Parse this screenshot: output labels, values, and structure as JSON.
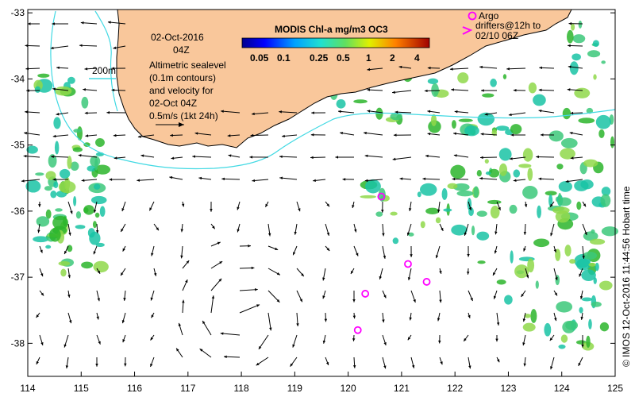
{
  "map": {
    "date_label": "02-Oct-2016",
    "time_label": "04Z",
    "isobath_label": "200m",
    "altimetry_lines": [
      "Altimetric sealevel",
      "(0.1m contours)",
      "and velocity for",
      "02-Oct 04Z",
      "0.5m/s (1kt 24h)"
    ],
    "argo_legend": [
      "Argo",
      "drifters@12h to",
      "02/10 06Z"
    ],
    "credit": "© IMOS 12-Oct-2016 11:44:56 Hobart time",
    "x_ticks": [
      "114",
      "115",
      "116",
      "117",
      "118",
      "119",
      "120",
      "121",
      "122",
      "123",
      "124",
      "125"
    ],
    "y_ticks": [
      "-33",
      "-34",
      "-35",
      "-36",
      "-37",
      "-38"
    ]
  },
  "colorbar": {
    "title": "MODIS Chl-a mg/m3 OC3",
    "tick_labels": [
      "0.05",
      "0.1",
      "0.25",
      "0.5",
      "1",
      "2",
      "4"
    ]
  },
  "colors": {
    "land": "#f9c79b",
    "coast_line": "#000000",
    "isobath": "#41d9e3",
    "argo_marker": "#ff00ff",
    "chl_low": "#19c3a5",
    "chl_mid": "#2bb52b",
    "chl_high": "#8fd84a"
  },
  "argo_positions": [
    {
      "lon": 120.62,
      "lat": -35.78
    },
    {
      "lon": 121.12,
      "lat": -36.8
    },
    {
      "lon": 121.47,
      "lat": -37.07
    },
    {
      "lon": 120.32,
      "lat": -37.25
    },
    {
      "lon": 120.18,
      "lat": -37.8
    }
  ]
}
